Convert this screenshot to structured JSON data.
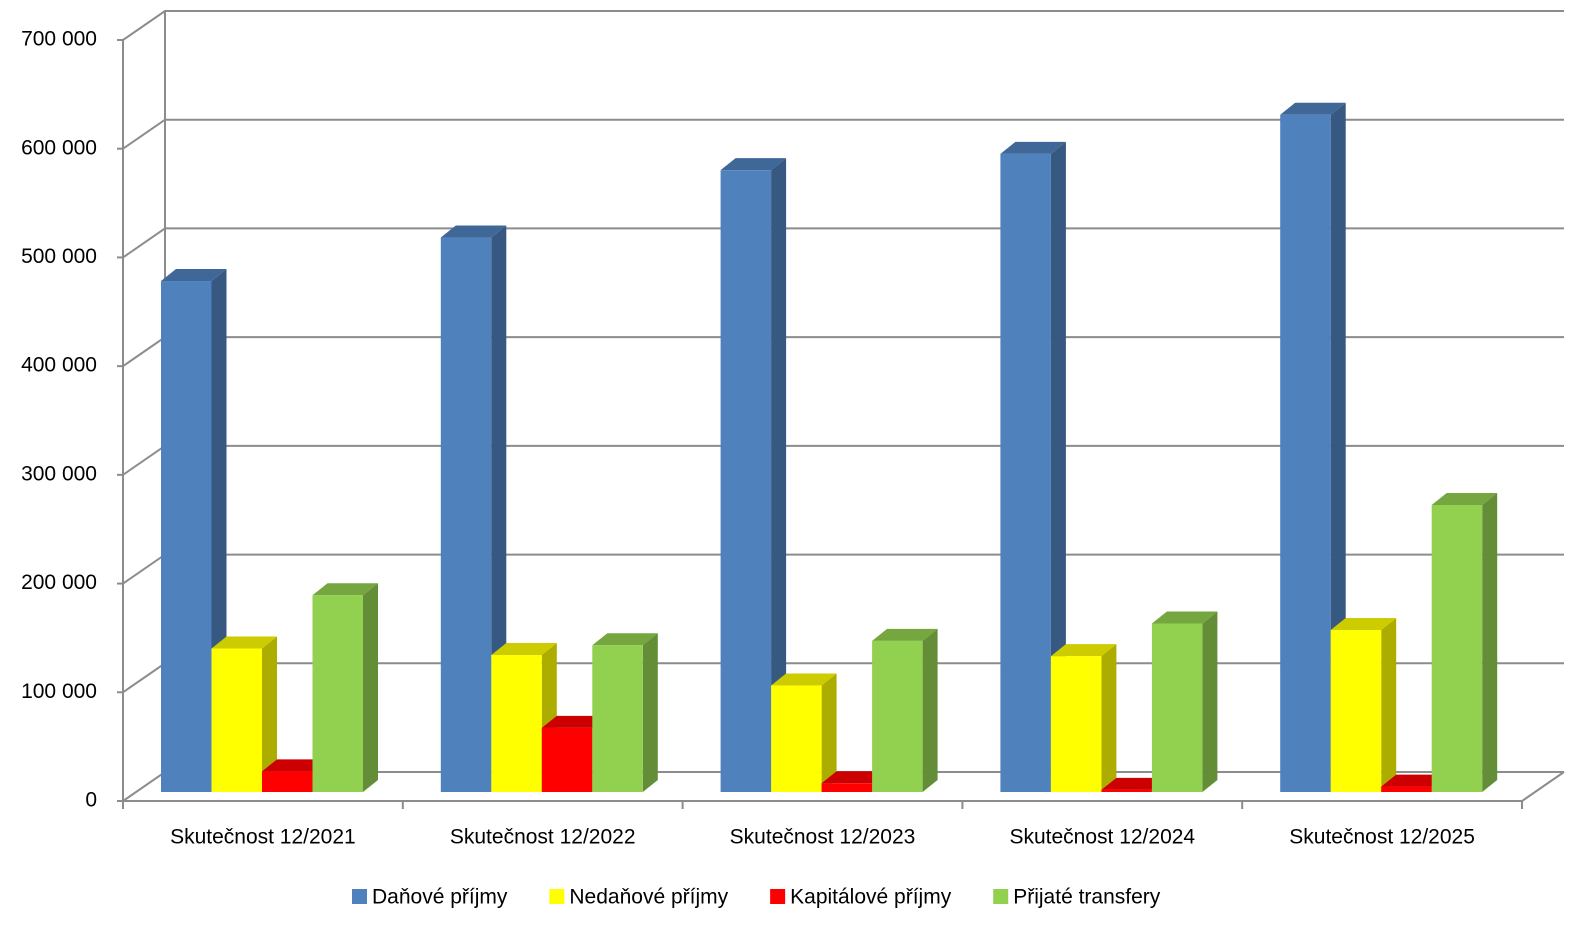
{
  "chart_data": {
    "type": "bar3d",
    "categories": [
      "Skutečnost 12/2021",
      "Skutečnost 12/2022",
      "Skutečnost 12/2023",
      "Skutečnost 12/2024",
      "Skutečnost 12/2025"
    ],
    "series": [
      {
        "name": "Daňové příjmy",
        "color": "#4f81bd",
        "values": [
          470000,
          510000,
          572000,
          587000,
          623000
        ]
      },
      {
        "name": "Nedaňové příjmy",
        "color": "#ffff00",
        "values": [
          132000,
          126000,
          98000,
          125000,
          149000
        ]
      },
      {
        "name": "Kapitálové příjmy",
        "color": "#ff0000",
        "values": [
          19000,
          59000,
          8000,
          2000,
          5000
        ]
      },
      {
        "name": "Přijaté transfery",
        "color": "#92d050",
        "values": [
          181000,
          135000,
          139000,
          155000,
          264000
        ]
      }
    ],
    "ylim": [
      0,
      700000
    ],
    "yticks": [
      {
        "value": 0,
        "label": "0"
      },
      {
        "value": 100000,
        "label": "100 000"
      },
      {
        "value": 200000,
        "label": "200 000"
      },
      {
        "value": 300000,
        "label": "300 000"
      },
      {
        "value": 400000,
        "label": "400 000"
      },
      {
        "value": 500000,
        "label": "500 000"
      },
      {
        "value": 600000,
        "label": "600 000"
      },
      {
        "value": 700000,
        "label": "700 000"
      }
    ],
    "grid": true,
    "legend": "bottom"
  }
}
